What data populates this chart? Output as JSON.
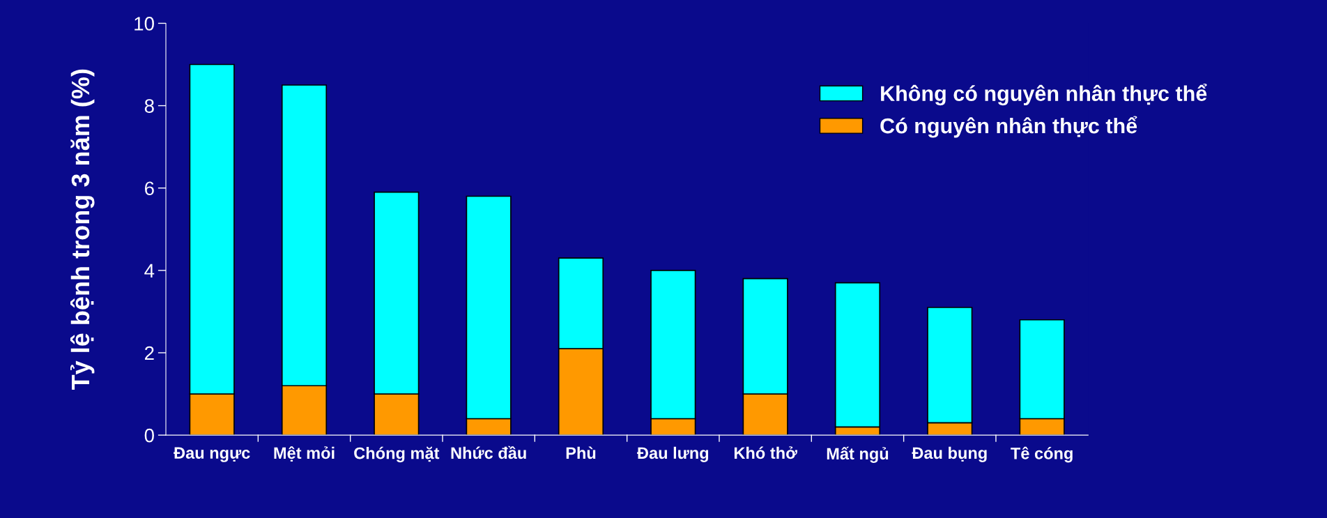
{
  "chart_data": {
    "type": "bar",
    "stacked": true,
    "ylabel": "Tỷ lệ bệnh trong 3 năm (%)",
    "categories": [
      "Đau ngực",
      "Mệt mỏi",
      "Chóng mặt",
      "Nhức đầu",
      "Phù",
      "Đau lưng",
      "Khó thở",
      "Mất ngủ",
      "Đau bụng",
      "Tê cóng"
    ],
    "series": [
      {
        "name": "Có nguyên nhân thực thể",
        "color": "#ff9900",
        "values": [
          1.0,
          1.2,
          1.0,
          0.4,
          2.1,
          0.4,
          1.0,
          0.2,
          0.3,
          0.4
        ]
      },
      {
        "name": "Không có nguyên nhân thực thể",
        "color": "#00ffff",
        "values": [
          8.0,
          7.3,
          4.9,
          5.4,
          2.2,
          3.6,
          2.8,
          3.5,
          2.8,
          2.4
        ]
      }
    ],
    "ylim": [
      0,
      10
    ],
    "yticks": [
      0,
      2,
      4,
      6,
      8,
      10
    ],
    "grid": false,
    "legend": "top right"
  }
}
